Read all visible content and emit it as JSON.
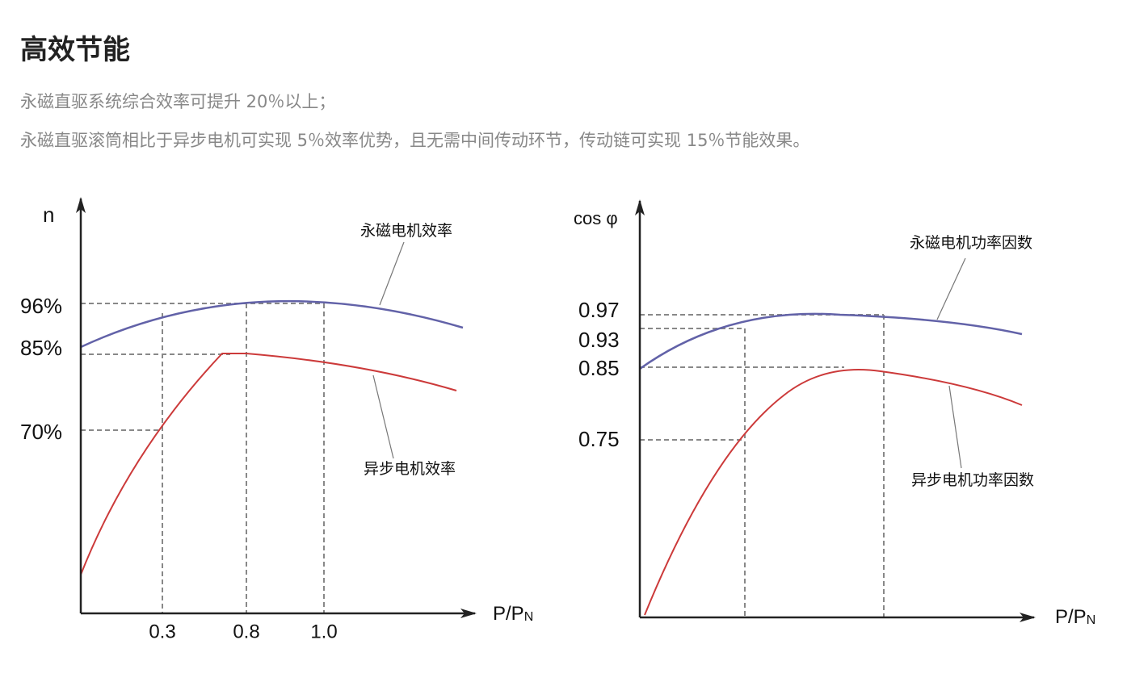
{
  "header": {
    "title": "高效节能"
  },
  "paragraphs": [
    "永磁直驱系统综合效率可提升 20％以上；",
    "永磁直驱滚筒相比于异步电机可实现 5％效率优势，且无需中间传动环节，传动链可实现 15％节能效果。"
  ],
  "figures": [
    {
      "y_label": "n",
      "x_label": {
        "main": "P/P",
        "sub": "N"
      },
      "y_labels": [
        "96%",
        "85%",
        "70%"
      ],
      "x_labels": [
        "0.3",
        "0.8",
        "1.0"
      ],
      "annotations": [
        "永磁电机效率",
        "异步电机效率"
      ]
    },
    {
      "y_label": "cos φ",
      "x_label": {
        "main": "P/P",
        "sub": "N"
      },
      "y_labels": [
        "0.97",
        "0.93",
        "0.85",
        "0.75"
      ],
      "x_labels": [],
      "annotations": [
        "永磁电机功率因数",
        "异步电机功率因数"
      ]
    }
  ]
}
